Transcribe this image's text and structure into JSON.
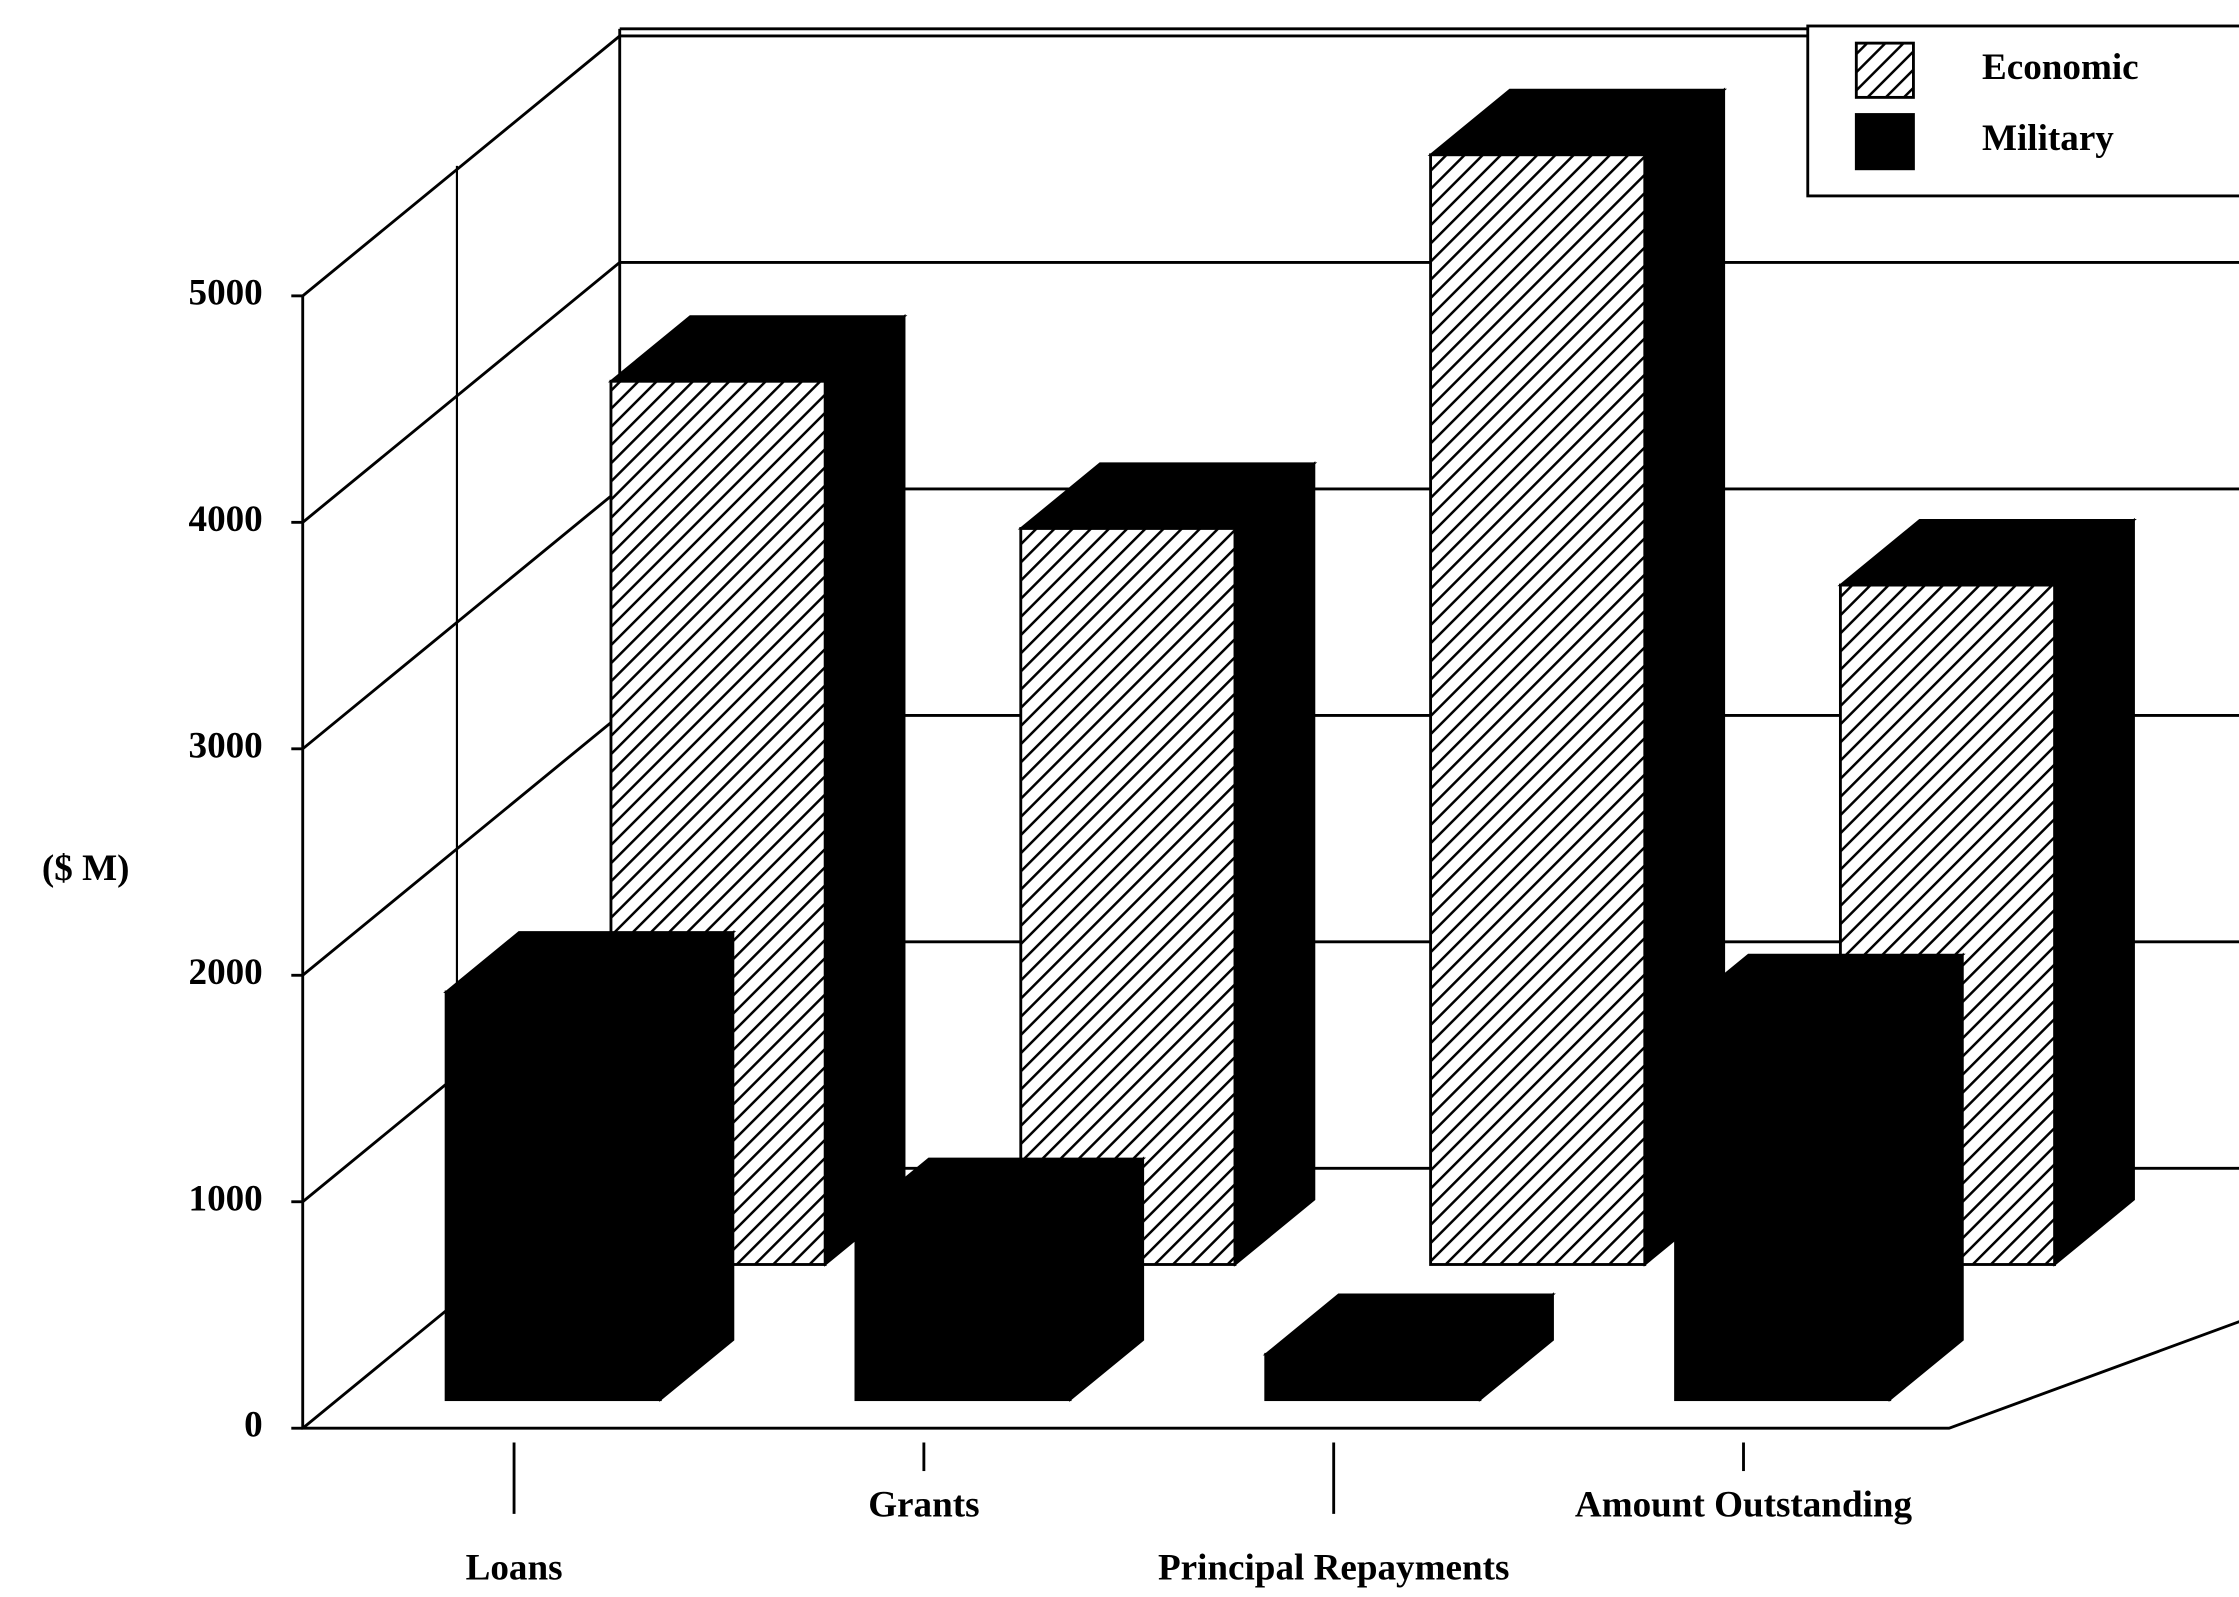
{
  "chart_data": {
    "type": "bar3d",
    "y_label": "($ M)",
    "categories": [
      "Loans",
      "Grants",
      "Principal Repayments",
      "Amount Outstanding"
    ],
    "series": [
      {
        "name": "Economic",
        "color": "#000000",
        "pattern": "hatch",
        "values": [
          3900,
          3250,
          4900,
          3000
        ]
      },
      {
        "name": "Military",
        "color": "#000000",
        "pattern": "solid",
        "values": [
          1800,
          800,
          200,
          1700
        ]
      }
    ],
    "ylim": [
      0,
      5000
    ],
    "yticks": [
      0,
      1000,
      2000,
      3000,
      4000,
      5000
    ],
    "grid": true,
    "legend": "top-right"
  }
}
